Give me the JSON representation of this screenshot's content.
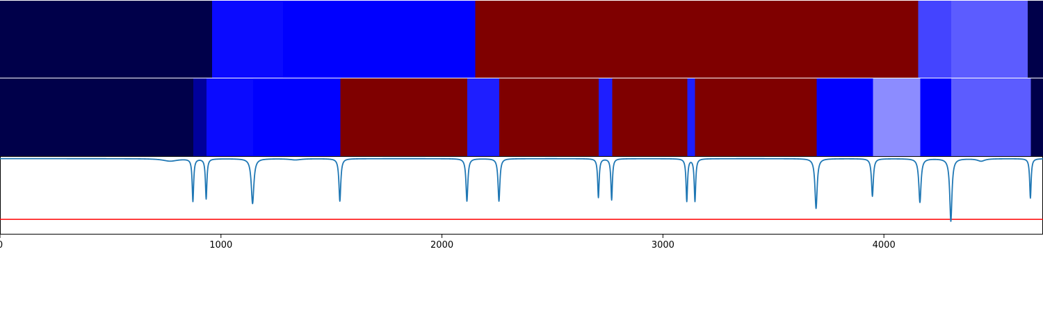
{
  "chart_data": {
    "type": "line",
    "title": "",
    "xlabel": "",
    "ylabel": "",
    "xlim": [
      0,
      4720
    ],
    "ylim": [
      -1.25,
      0.03
    ],
    "grid": false,
    "legend": "none",
    "x_ticks": [
      0,
      1000,
      2000,
      3000,
      4000
    ],
    "x_tick_labels": [
      "0",
      "1000",
      "2000",
      "3000",
      "4000"
    ],
    "colors": {
      "line": "#1f77b4",
      "threshold": "#ff0000",
      "axis": "#000000",
      "state_palette": {
        "navy": "#00004a",
        "darkblue": "#00009a",
        "blue": "#0000ff",
        "mid_blue": "#1e1eff",
        "indigo_blue": "#4444ff",
        "periwinkle": "#5c5cff",
        "lavender": "#8c8cff",
        "maroon": "#7f0000"
      }
    },
    "state_bands": [
      {
        "segments": [
          {
            "start": 0,
            "end": 960,
            "color": "#00004a"
          },
          {
            "start": 960,
            "end": 1280,
            "color": "#0a0aff"
          },
          {
            "start": 1280,
            "end": 2150,
            "color": "#0000ff"
          },
          {
            "start": 2150,
            "end": 4155,
            "color": "#7f0000"
          },
          {
            "start": 4155,
            "end": 4305,
            "color": "#4444ff"
          },
          {
            "start": 4305,
            "end": 4650,
            "color": "#5c5cff"
          },
          {
            "start": 4650,
            "end": 4720,
            "color": "#00004a"
          }
        ]
      },
      {
        "segments": [
          {
            "start": 0,
            "end": 875,
            "color": "#00004a"
          },
          {
            "start": 875,
            "end": 935,
            "color": "#00009a"
          },
          {
            "start": 935,
            "end": 1145,
            "color": "#0a0aff"
          },
          {
            "start": 1145,
            "end": 1540,
            "color": "#0000ff"
          },
          {
            "start": 1540,
            "end": 2115,
            "color": "#7f0000"
          },
          {
            "start": 2115,
            "end": 2260,
            "color": "#1e1eff"
          },
          {
            "start": 2260,
            "end": 2710,
            "color": "#7f0000"
          },
          {
            "start": 2710,
            "end": 2770,
            "color": "#1e1eff"
          },
          {
            "start": 2770,
            "end": 3110,
            "color": "#7f0000"
          },
          {
            "start": 3110,
            "end": 3145,
            "color": "#1e1eff"
          },
          {
            "start": 3145,
            "end": 3695,
            "color": "#7f0000"
          },
          {
            "start": 3695,
            "end": 3950,
            "color": "#0000ff"
          },
          {
            "start": 3950,
            "end": 4165,
            "color": "#8c8cff"
          },
          {
            "start": 4165,
            "end": 4305,
            "color": "#0000ff"
          },
          {
            "start": 4305,
            "end": 4665,
            "color": "#5c5cff"
          },
          {
            "start": 4665,
            "end": 4720,
            "color": "#00004a"
          }
        ]
      }
    ],
    "threshold_y": -1.0,
    "series": [
      {
        "baseline": 0,
        "dips": [
          {
            "x": 770,
            "depth": 0.04,
            "width": 40
          },
          {
            "x": 873,
            "depth": 0.7,
            "width": 4
          },
          {
            "x": 933,
            "depth": 0.66,
            "width": 4
          },
          {
            "x": 1143,
            "depth": 0.74,
            "width": 7
          },
          {
            "x": 1337,
            "depth": 0.02,
            "width": 30
          },
          {
            "x": 1538,
            "depth": 0.7,
            "width": 5
          },
          {
            "x": 2113,
            "depth": 0.7,
            "width": 5
          },
          {
            "x": 2258,
            "depth": 0.7,
            "width": 5
          },
          {
            "x": 2708,
            "depth": 0.64,
            "width": 4
          },
          {
            "x": 2768,
            "depth": 0.68,
            "width": 4
          },
          {
            "x": 3108,
            "depth": 0.7,
            "width": 4
          },
          {
            "x": 3145,
            "depth": 0.7,
            "width": 4
          },
          {
            "x": 3693,
            "depth": 0.82,
            "width": 6
          },
          {
            "x": 3948,
            "depth": 0.62,
            "width": 5
          },
          {
            "x": 4163,
            "depth": 0.72,
            "width": 6
          },
          {
            "x": 4303,
            "depth": 1.03,
            "width": 6
          },
          {
            "x": 4440,
            "depth": 0.04,
            "width": 20
          },
          {
            "x": 4663,
            "depth": 0.65,
            "width": 4
          }
        ]
      }
    ]
  }
}
